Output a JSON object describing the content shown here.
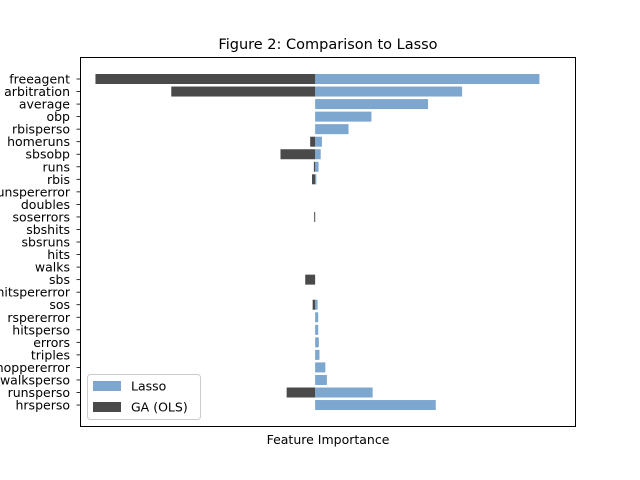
{
  "chart_data": {
    "type": "bar",
    "orientation": "horizontal",
    "title": "Figure 2: Comparison to Lasso",
    "xlabel": "Feature Importance",
    "ylabel": "",
    "x_ticks_visible": false,
    "grid": false,
    "legend_position": "lower-left",
    "xlim": [
      -0.76,
      0.84
    ],
    "categories": [
      "freeagent",
      "arbitration",
      "average",
      "obp",
      "rbisperso",
      "homeruns",
      "sbsobp",
      "runs",
      "rbis",
      "runsperеrror",
      "doubles",
      "soserrors",
      "sbshits",
      "sbsruns",
      "hits",
      "walks",
      "sbs",
      "hitspererror",
      "sos",
      "rsperеrror",
      "hitsperso",
      "errors",
      "triples",
      "hoppererror",
      "walksperso",
      "runsperso",
      "hrsperso"
    ],
    "series": [
      {
        "name": "Lasso",
        "color": "#7ea7cf",
        "values": [
          0.725,
          0.475,
          0.365,
          0.182,
          0.108,
          0.022,
          0.018,
          0.011,
          0.004,
          0.0,
          0.0,
          0.0,
          0.0,
          0.0,
          0.0,
          0.0,
          0.0,
          0.0,
          0.008,
          0.01,
          0.01,
          0.012,
          0.014,
          0.033,
          0.038,
          0.186,
          0.39
        ]
      },
      {
        "name": "GA (OLS)",
        "color": "#4a4a4a",
        "values": [
          -0.71,
          -0.465,
          0.0,
          0.0,
          0.0,
          -0.016,
          -0.112,
          -0.004,
          -0.01,
          0.0,
          0.0,
          -0.003,
          0.0,
          0.0,
          0.0,
          0.0,
          -0.032,
          0.0,
          -0.008,
          0.0,
          0.0,
          0.0,
          0.0,
          0.0,
          0.0,
          -0.092,
          0.0
        ]
      }
    ]
  }
}
